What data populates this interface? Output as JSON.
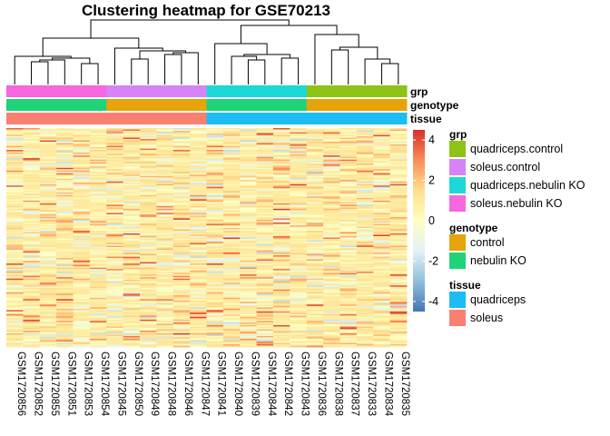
{
  "chart_data": {
    "type": "heatmap",
    "title": "Clustering heatmap for GSE70213",
    "columns": [
      "GSM1720856",
      "GSM1720852",
      "GSM1720855",
      "GSM1720851",
      "GSM1720853",
      "GSM1720854",
      "GSM1720845",
      "GSM1720850",
      "GSM1720849",
      "GSM1720848",
      "GSM1720846",
      "GSM1720847",
      "GSM1720841",
      "GSM1720840",
      "GSM1720839",
      "GSM1720844",
      "GSM1720842",
      "GSM1720843",
      "GSM1720836",
      "GSM1720838",
      "GSM1720837",
      "GSM1720833",
      "GSM1720834",
      "GSM1720835"
    ],
    "annotation_rows": [
      {
        "name": "grp",
        "values": [
          "soleus.nebulin KO",
          "soleus.nebulin KO",
          "soleus.nebulin KO",
          "soleus.nebulin KO",
          "soleus.nebulin KO",
          "soleus.nebulin KO",
          "soleus.control",
          "soleus.control",
          "soleus.control",
          "soleus.control",
          "soleus.control",
          "soleus.control",
          "quadriceps.nebulin KO",
          "quadriceps.nebulin KO",
          "quadriceps.nebulin KO",
          "quadriceps.nebulin KO",
          "quadriceps.nebulin KO",
          "quadriceps.nebulin KO",
          "quadriceps.control",
          "quadriceps.control",
          "quadriceps.control",
          "quadriceps.control",
          "quadriceps.control",
          "quadriceps.control"
        ]
      },
      {
        "name": "genotype",
        "values": [
          "nebulin KO",
          "nebulin KO",
          "nebulin KO",
          "nebulin KO",
          "nebulin KO",
          "nebulin KO",
          "control",
          "control",
          "control",
          "control",
          "control",
          "control",
          "nebulin KO",
          "nebulin KO",
          "nebulin KO",
          "nebulin KO",
          "nebulin KO",
          "nebulin KO",
          "control",
          "control",
          "control",
          "control",
          "control",
          "control"
        ]
      },
      {
        "name": "tissue",
        "values": [
          "soleus",
          "soleus",
          "soleus",
          "soleus",
          "soleus",
          "soleus",
          "soleus",
          "soleus",
          "soleus",
          "soleus",
          "soleus",
          "soleus",
          "quadriceps",
          "quadriceps",
          "quadriceps",
          "quadriceps",
          "quadriceps",
          "quadriceps",
          "quadriceps",
          "quadriceps",
          "quadriceps",
          "quadriceps",
          "quadriceps",
          "quadriceps"
        ]
      }
    ],
    "legends": [
      {
        "title": "grp",
        "items": [
          {
            "label": "quadriceps.control",
            "color": "#8cc314"
          },
          {
            "label": "soleus.control",
            "color": "#d783f5"
          },
          {
            "label": "quadriceps.nebulin KO",
            "color": "#1dd8d8"
          },
          {
            "label": "soleus.nebulin KO",
            "color": "#f566df"
          }
        ]
      },
      {
        "title": "genotype",
        "items": [
          {
            "label": "control",
            "color": "#e6a40a"
          },
          {
            "label": "nebulin KO",
            "color": "#1fd37a"
          }
        ]
      },
      {
        "title": "tissue",
        "items": [
          {
            "label": "quadriceps",
            "color": "#1cbcf7"
          },
          {
            "label": "soleus",
            "color": "#fa8072"
          }
        ]
      }
    ],
    "color_scale": {
      "range": [
        -4.5,
        4.5
      ],
      "ticks": [
        4,
        2,
        0,
        -2,
        -4
      ],
      "tick_labels": [
        "4",
        "2",
        "0",
        "-2",
        "-4"
      ],
      "colors": [
        "#4575b4",
        "#91bfdb",
        "#e0f3f8",
        "#ffffbf",
        "#fee090",
        "#fc8d59",
        "#d73027"
      ]
    },
    "n_gene_rows": 160,
    "legend": "right",
    "grid": false
  }
}
